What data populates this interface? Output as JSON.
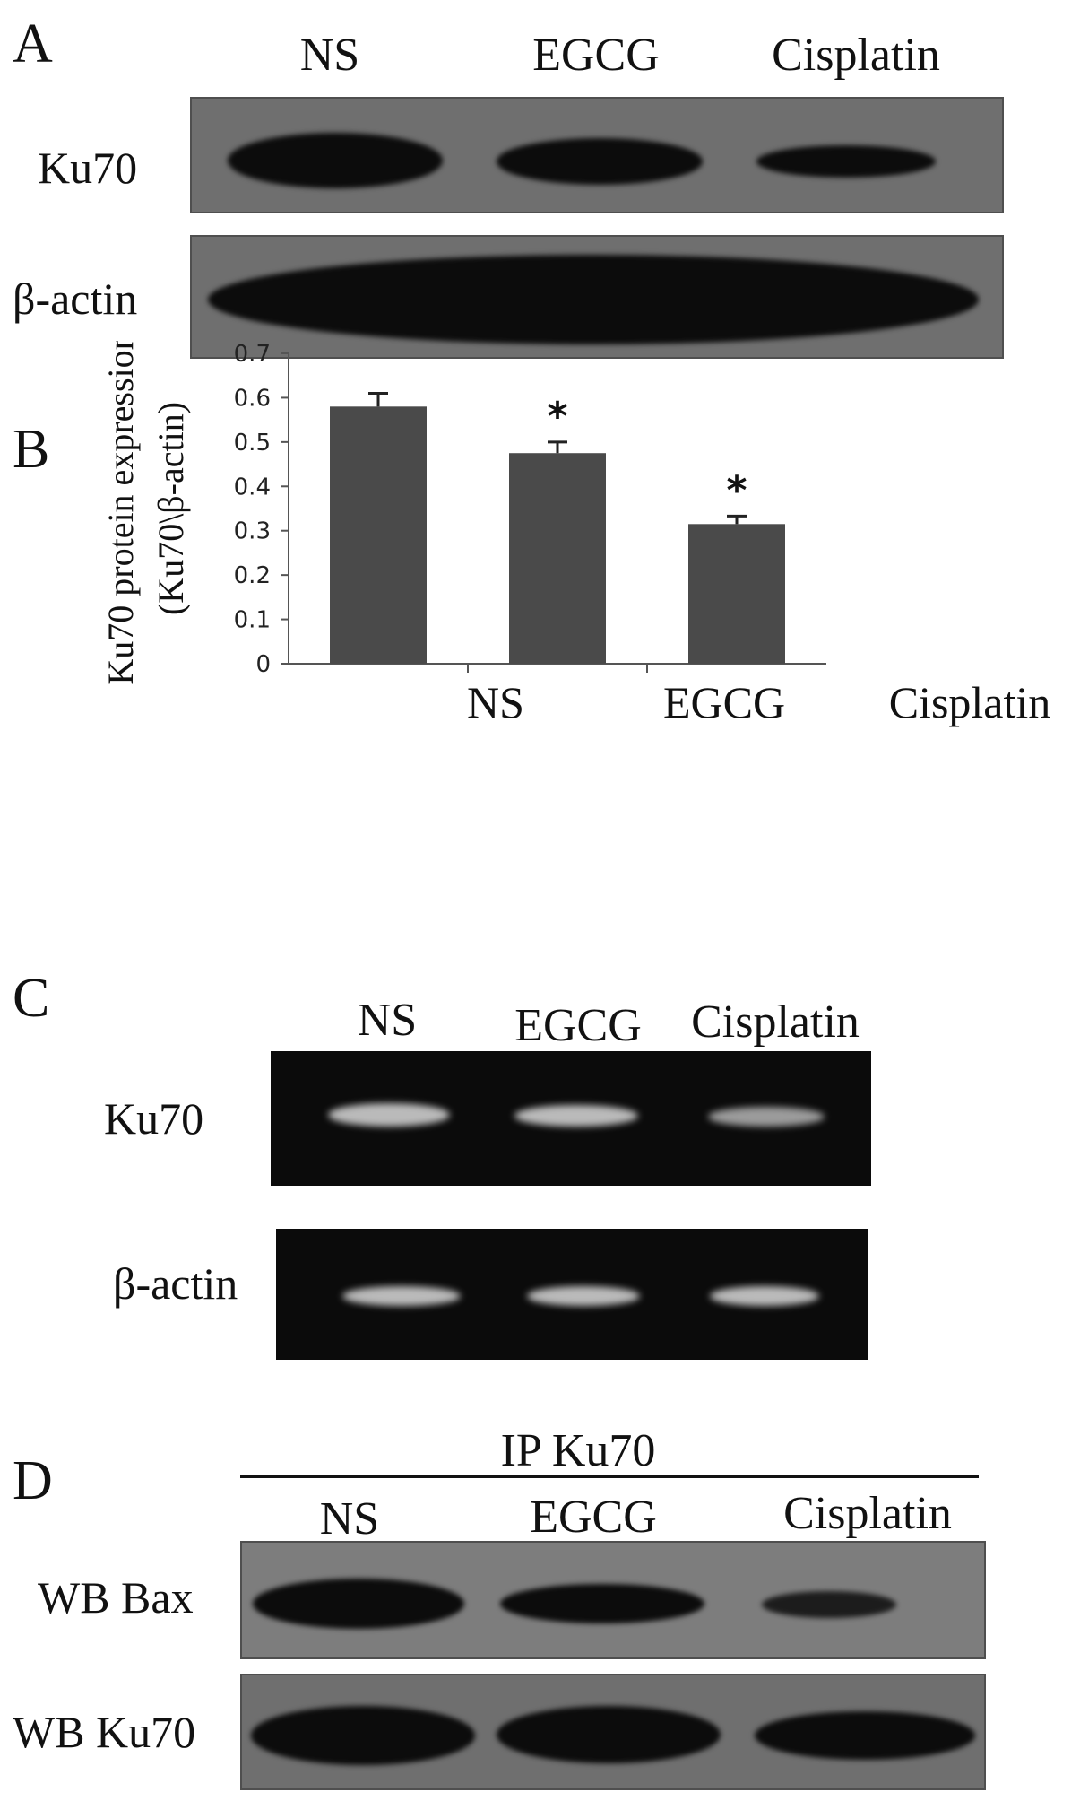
{
  "panels": {
    "A": {
      "letter": "A",
      "lanes": [
        "NS",
        "EGCG",
        "Cisplatin"
      ],
      "rows": [
        "Ku70",
        "β-actin"
      ]
    },
    "B": {
      "letter": "B"
    },
    "C": {
      "letter": "C",
      "lanes": [
        "NS",
        "EGCG",
        "Cisplatin"
      ],
      "rows": [
        "Ku70",
        "β-actin"
      ]
    },
    "D": {
      "letter": "D",
      "header": "IP Ku70",
      "lanes": [
        "NS",
        "EGCG",
        "Cisplatin"
      ],
      "rows": [
        "WB Bax",
        "WB Ku70"
      ]
    }
  },
  "chart_data": {
    "type": "bar",
    "categories": [
      "NS",
      "EGCG",
      "Cisplatin"
    ],
    "values": [
      0.58,
      0.475,
      0.315
    ],
    "errors": [
      0.03,
      0.025,
      0.018
    ],
    "significance": [
      "",
      "*",
      "*"
    ],
    "ylabel_line1": "Ku70 protein expression",
    "ylabel_line2": "(Ku70\\β-actin)",
    "ylim": [
      0,
      0.7
    ],
    "yticks": [
      "0",
      "0.1",
      "0.2",
      "0.3",
      "0.4",
      "0.5",
      "0.6",
      "0.7"
    ],
    "bar_color": "#4a4a4a",
    "grid": false
  },
  "colors": {
    "blot_background": "#6f6f6f",
    "blot_band": "#0c0c0c",
    "gel_background": "#0b0b0b",
    "gel_band": "#d9d9d9"
  }
}
